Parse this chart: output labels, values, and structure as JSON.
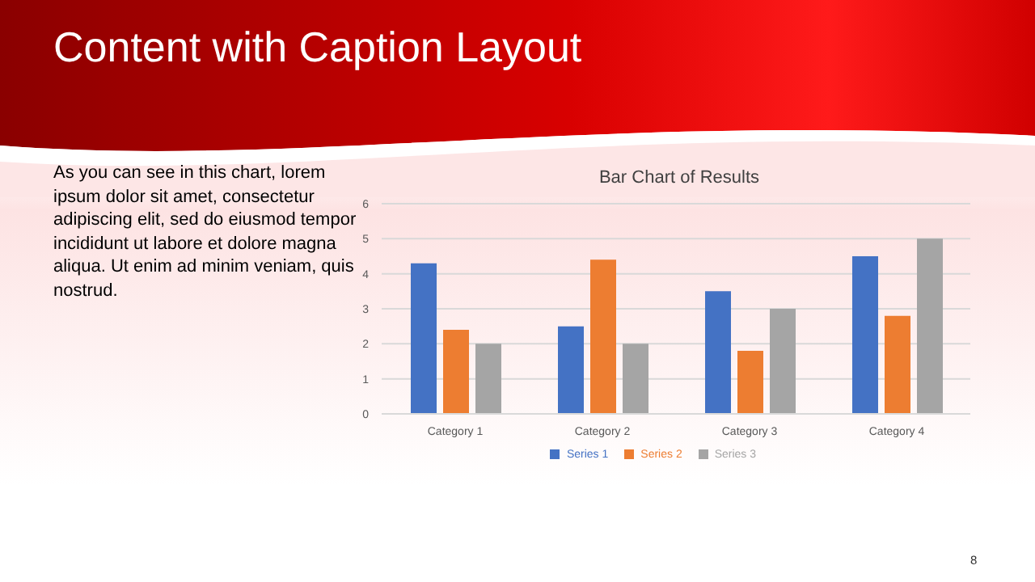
{
  "chart_data": {
    "type": "bar",
    "title": "Content with Caption Layout",
    "subtitle": "Bar Chart of Results",
    "categories": [
      "Category 1",
      "Category 2",
      "Category 3",
      "Category 4"
    ],
    "series": [
      {
        "name": "Series 1",
        "color": "#4472c4",
        "values": [
          4.3,
          2.5,
          3.5,
          4.5
        ]
      },
      {
        "name": "Series 2",
        "color": "#ed7d31",
        "values": [
          2.4,
          4.4,
          1.8,
          2.8
        ]
      },
      {
        "name": "Series 3",
        "color": "#a5a5a5",
        "values": [
          2,
          2,
          3,
          5
        ]
      }
    ],
    "ylim": [
      0,
      6
    ],
    "yticks": [
      0,
      1,
      2,
      3,
      4,
      5,
      6
    ],
    "grid": "y",
    "legend": "bottom",
    "annotations": [
      "As you can see in this chart, lorem ipsum dolor sit amet, consectetur adipiscing elit, sed do eiusmod tempor incididunt ut labore et dolore magna aliqua. Ut enim ad minim veniam, quis nostrud.",
      "8"
    ]
  }
}
